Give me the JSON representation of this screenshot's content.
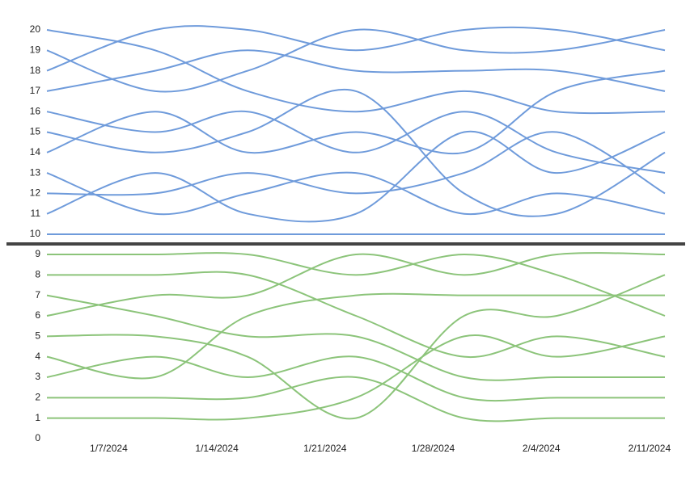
{
  "chart_data": [
    {
      "type": "line",
      "color": "#6f9bdb",
      "x": [
        "1/3/2024",
        "1/10/2024",
        "1/16/2024",
        "1/23/2024",
        "1/30/2024",
        "2/5/2024",
        "2/12/2024"
      ],
      "xlim": [
        "1/3/2024",
        "2/12/2024"
      ],
      "ylim": [
        10,
        20
      ],
      "yticks": [
        10,
        11,
        12,
        13,
        14,
        15,
        16,
        17,
        18,
        19,
        20
      ],
      "series": [
        {
          "values": [
            20,
            19,
            17,
            16,
            17,
            16,
            16
          ]
        },
        {
          "values": [
            19,
            17,
            18,
            20,
            19,
            19,
            20
          ]
        },
        {
          "values": [
            18,
            20,
            20,
            19,
            20,
            20,
            19
          ]
        },
        {
          "values": [
            17,
            18,
            19,
            18,
            18,
            18,
            17
          ]
        },
        {
          "values": [
            16,
            15,
            16,
            14,
            16,
            14,
            13
          ]
        },
        {
          "values": [
            15,
            14,
            15,
            17,
            12,
            11,
            14
          ]
        },
        {
          "values": [
            14,
            16,
            14,
            15,
            14,
            17,
            18
          ]
        },
        {
          "values": [
            13,
            11,
            12,
            13,
            11,
            12,
            11
          ]
        },
        {
          "values": [
            12,
            12,
            13,
            12,
            13,
            15,
            12
          ]
        },
        {
          "values": [
            11,
            13,
            11,
            11,
            15,
            13,
            15
          ]
        },
        {
          "values": [
            10,
            10,
            10,
            10,
            10,
            10,
            10
          ]
        }
      ]
    },
    {
      "type": "line",
      "color": "#8cc47a",
      "x": [
        "1/3/2024",
        "1/10/2024",
        "1/16/2024",
        "1/23/2024",
        "1/30/2024",
        "2/5/2024",
        "2/12/2024"
      ],
      "xlim": [
        "1/3/2024",
        "2/12/2024"
      ],
      "xticks": [
        "1/7/2024",
        "1/14/2024",
        "1/21/2024",
        "1/28/2024",
        "2/4/2024",
        "2/11/2024"
      ],
      "ylim": [
        0,
        9
      ],
      "yticks": [
        0,
        1,
        2,
        3,
        4,
        5,
        6,
        7,
        8,
        9
      ],
      "series": [
        {
          "values": [
            9,
            9,
            9,
            8,
            9,
            8,
            6
          ]
        },
        {
          "values": [
            8,
            8,
            8,
            6,
            4,
            5,
            4
          ]
        },
        {
          "values": [
            7,
            6,
            5,
            5,
            3,
            3,
            3
          ]
        },
        {
          "values": [
            6,
            7,
            7,
            9,
            8,
            9,
            9
          ]
        },
        {
          "values": [
            5,
            5,
            4,
            1,
            6,
            6,
            8
          ]
        },
        {
          "values": [
            4,
            3,
            6,
            7,
            7,
            7,
            7
          ]
        },
        {
          "values": [
            3,
            4,
            3,
            4,
            2,
            2,
            2
          ]
        },
        {
          "values": [
            2,
            2,
            2,
            3,
            1,
            1,
            1
          ]
        },
        {
          "values": [
            1,
            1,
            1,
            2,
            5,
            4,
            5
          ]
        }
      ]
    }
  ]
}
